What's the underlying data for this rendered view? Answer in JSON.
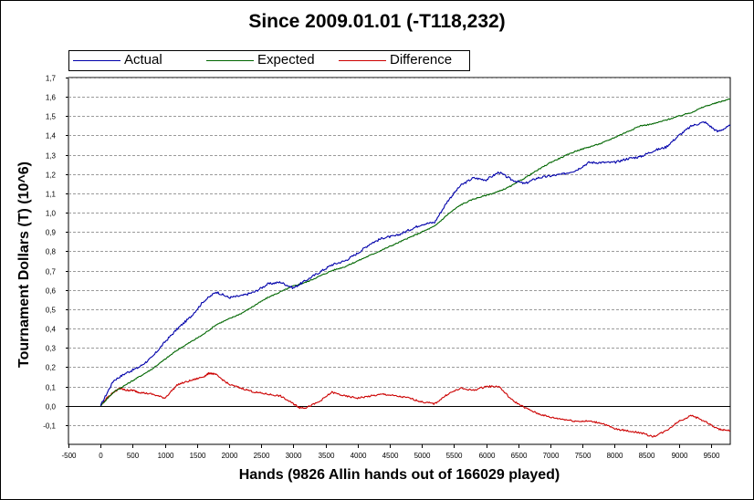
{
  "chart_data": {
    "type": "line",
    "title": "Since 2009.01.01 (-T118,232)",
    "xlabel": "Hands (9826 Allin hands out of 166029 played)",
    "ylabel": "Tournament Dollars (T) (10^6)",
    "xlim": [
      -500,
      9800
    ],
    "ylim": [
      -0.2,
      1.7
    ],
    "xticks": [
      -500,
      0,
      500,
      1000,
      1500,
      2000,
      2500,
      3000,
      3500,
      4000,
      4500,
      5000,
      5500,
      6000,
      6500,
      7000,
      7500,
      8000,
      8500,
      9000,
      9500
    ],
    "yticks": [
      -0.1,
      0.0,
      0.1,
      0.2,
      0.3,
      0.4,
      0.5,
      0.6,
      0.7,
      0.8,
      0.9,
      1.0,
      1.1,
      1.2,
      1.3,
      1.4,
      1.5,
      1.6,
      1.7
    ],
    "ytick_labels": [
      "-0,1",
      "0,0",
      "0,1",
      "0,2",
      "0,3",
      "0,4",
      "0,5",
      "0,6",
      "0,7",
      "0,8",
      "0,9",
      "1,0",
      "1,1",
      "1,2",
      "1,3",
      "1,4",
      "1,5",
      "1,6",
      "1,7"
    ],
    "grid": "horizontal dashed",
    "legend_position": "top-left",
    "series": [
      {
        "name": "Actual",
        "color": "#0000aa",
        "x": [
          0,
          200,
          400,
          600,
          800,
          1000,
          1200,
          1400,
          1600,
          1800,
          2000,
          2200,
          2400,
          2600,
          2800,
          3000,
          3200,
          3400,
          3600,
          3800,
          4000,
          4200,
          4400,
          4600,
          4800,
          5000,
          5200,
          5400,
          5600,
          5800,
          6000,
          6200,
          6400,
          6600,
          6800,
          7000,
          7200,
          7400,
          7600,
          7800,
          8000,
          8200,
          8400,
          8600,
          8800,
          9000,
          9200,
          9400,
          9600,
          9800
        ],
        "values": [
          0.0,
          0.13,
          0.17,
          0.2,
          0.25,
          0.33,
          0.4,
          0.46,
          0.54,
          0.59,
          0.56,
          0.57,
          0.59,
          0.63,
          0.64,
          0.61,
          0.65,
          0.69,
          0.73,
          0.75,
          0.79,
          0.84,
          0.87,
          0.88,
          0.91,
          0.94,
          0.95,
          1.06,
          1.14,
          1.18,
          1.17,
          1.21,
          1.17,
          1.15,
          1.18,
          1.19,
          1.2,
          1.22,
          1.26,
          1.26,
          1.26,
          1.28,
          1.29,
          1.32,
          1.34,
          1.4,
          1.45,
          1.47,
          1.42,
          1.45
        ]
      },
      {
        "name": "Expected",
        "color": "#006600",
        "x": [
          0,
          200,
          400,
          600,
          800,
          1000,
          1200,
          1400,
          1600,
          1800,
          2000,
          2200,
          2400,
          2600,
          2800,
          3000,
          3200,
          3400,
          3600,
          3800,
          4000,
          4200,
          4400,
          4600,
          4800,
          5000,
          5200,
          5400,
          5600,
          5800,
          6000,
          6200,
          6400,
          6600,
          6800,
          7000,
          7200,
          7400,
          7600,
          7800,
          8000,
          8200,
          8400,
          8600,
          8800,
          9000,
          9200,
          9400,
          9600,
          9800
        ],
        "values": [
          0.0,
          0.07,
          0.11,
          0.15,
          0.19,
          0.24,
          0.29,
          0.33,
          0.37,
          0.42,
          0.45,
          0.48,
          0.52,
          0.56,
          0.59,
          0.62,
          0.64,
          0.67,
          0.7,
          0.72,
          0.75,
          0.78,
          0.81,
          0.84,
          0.87,
          0.9,
          0.93,
          0.99,
          1.04,
          1.07,
          1.09,
          1.11,
          1.14,
          1.18,
          1.22,
          1.26,
          1.29,
          1.32,
          1.34,
          1.36,
          1.39,
          1.42,
          1.45,
          1.46,
          1.48,
          1.5,
          1.52,
          1.55,
          1.57,
          1.59
        ]
      },
      {
        "name": "Difference",
        "color": "#cc0000",
        "x": [
          0,
          100,
          200,
          300,
          400,
          500,
          600,
          800,
          1000,
          1200,
          1400,
          1600,
          1700,
          1800,
          2000,
          2200,
          2400,
          2600,
          2800,
          3000,
          3100,
          3200,
          3400,
          3600,
          3800,
          4000,
          4200,
          4400,
          4600,
          4800,
          5000,
          5200,
          5400,
          5600,
          5800,
          6000,
          6200,
          6400,
          6600,
          6800,
          7000,
          7200,
          7400,
          7600,
          7800,
          8000,
          8200,
          8400,
          8600,
          8800,
          9000,
          9200,
          9400,
          9600,
          9800
        ],
        "values": [
          0.0,
          0.04,
          0.07,
          0.09,
          0.08,
          0.08,
          0.07,
          0.06,
          0.04,
          0.11,
          0.13,
          0.15,
          0.17,
          0.16,
          0.11,
          0.09,
          0.07,
          0.06,
          0.05,
          0.01,
          -0.01,
          -0.01,
          0.02,
          0.07,
          0.05,
          0.04,
          0.05,
          0.06,
          0.05,
          0.04,
          0.02,
          0.01,
          0.06,
          0.09,
          0.08,
          0.1,
          0.1,
          0.03,
          -0.01,
          -0.04,
          -0.06,
          -0.07,
          -0.08,
          -0.08,
          -0.09,
          -0.12,
          -0.13,
          -0.14,
          -0.16,
          -0.13,
          -0.08,
          -0.05,
          -0.08,
          -0.12,
          -0.13
        ]
      }
    ]
  }
}
